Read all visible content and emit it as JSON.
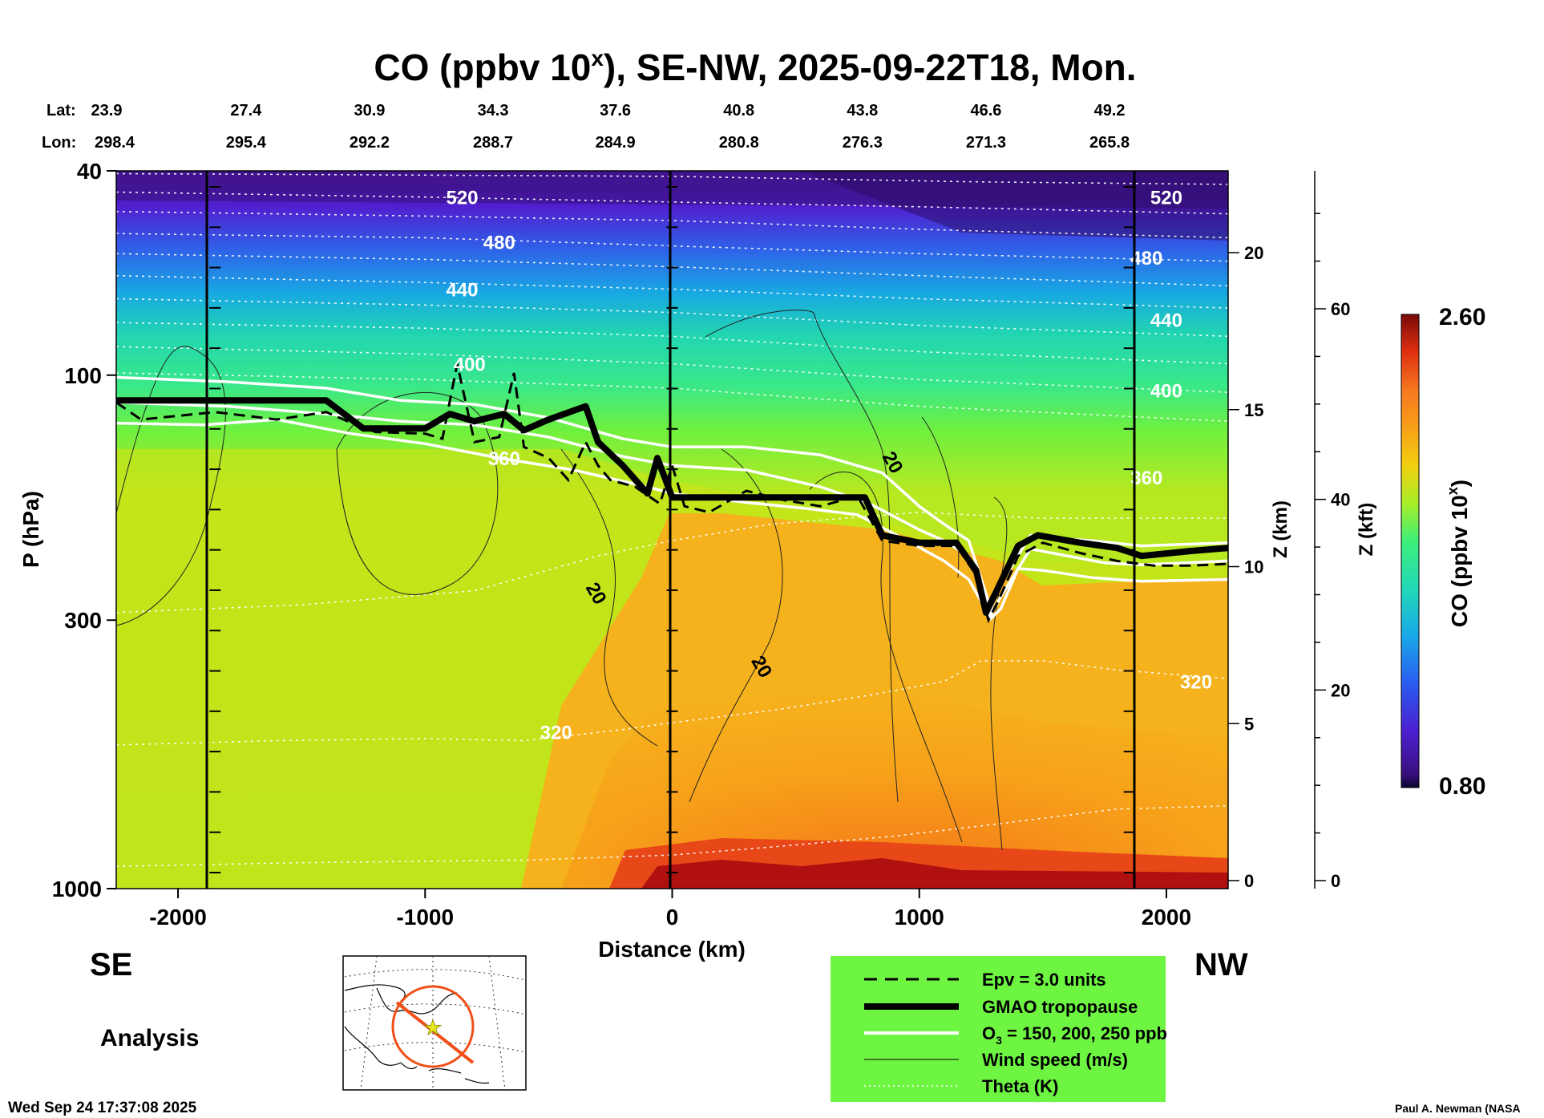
{
  "chart_data": {
    "type": "heatmap",
    "title": "CO (ppbv 10",
    "title_sup": "x",
    "title_rest": "), SE-NW, 2025-09-22T18, Mon.",
    "header": {
      "lat_label": "Lat:",
      "lon_label": "Lon:",
      "lat": [
        "23.9",
        "27.4",
        "30.9",
        "34.3",
        "37.6",
        "40.8",
        "43.8",
        "46.6",
        "49.2"
      ],
      "lon": [
        "298.4",
        "295.4",
        "292.2",
        "288.7",
        "284.9",
        "280.8",
        "276.3",
        "271.3",
        "265.8"
      ]
    },
    "xlabel": "Distance (km)",
    "xlim": [
      -2250,
      2250
    ],
    "xticks": [
      "-2000",
      "-1000",
      "0",
      "1000",
      "2000"
    ],
    "xtick_values": [
      -2000,
      -1000,
      0,
      1000,
      2000
    ],
    "ylabel": "P (hPa)",
    "ylim": [
      1000,
      40
    ],
    "yscale": "log",
    "yticks": [
      "40",
      "100",
      "300",
      "1000"
    ],
    "ytick_values": [
      40,
      100,
      300,
      1000
    ],
    "z_km_label": "Z (km)",
    "z_km_ticks": [
      "0",
      "5",
      "10",
      "15",
      "20"
    ],
    "z_kft_label": "Z (kft)",
    "z_kft_ticks": [
      "0",
      "20",
      "40",
      "60"
    ],
    "colorbar": {
      "label": "CO (ppbv 10",
      "label_sup": "x",
      "label_end": ")",
      "max": "2.60",
      "min": "0.80"
    },
    "theta_labels": [
      {
        "text": "520",
        "x": -850,
        "p": 45
      },
      {
        "text": "480",
        "x": -700,
        "p": 55
      },
      {
        "text": "440",
        "x": -850,
        "p": 68
      },
      {
        "text": "400",
        "x": -820,
        "p": 95
      },
      {
        "text": "360",
        "x": -680,
        "p": 145
      },
      {
        "text": "320",
        "x": -470,
        "p": 495
      },
      {
        "text": "520",
        "x": 2000,
        "p": 45
      },
      {
        "text": "480",
        "x": 1920,
        "p": 59
      },
      {
        "text": "440",
        "x": 2000,
        "p": 78
      },
      {
        "text": "400",
        "x": 2000,
        "p": 107
      },
      {
        "text": "360",
        "x": 1920,
        "p": 158
      },
      {
        "text": "320",
        "x": 2120,
        "p": 395
      }
    ],
    "wind_labels": [
      {
        "text": "20",
        "x": -330,
        "p": 270
      },
      {
        "text": "20",
        "x": 340,
        "p": 375
      },
      {
        "text": "20",
        "x": 870,
        "p": 150
      }
    ],
    "tropopause": [
      [
        -2250,
        112
      ],
      [
        -1850,
        112
      ],
      [
        -1400,
        112
      ],
      [
        -1250,
        127
      ],
      [
        -1000,
        127
      ],
      [
        -900,
        119
      ],
      [
        -800,
        123
      ],
      [
        -680,
        119
      ],
      [
        -600,
        128
      ],
      [
        -500,
        122
      ],
      [
        -350,
        115
      ],
      [
        -300,
        135
      ],
      [
        -200,
        150
      ],
      [
        -100,
        170
      ],
      [
        -60,
        145
      ],
      [
        0,
        173
      ],
      [
        200,
        173
      ],
      [
        500,
        173
      ],
      [
        780,
        173
      ],
      [
        850,
        205
      ],
      [
        1000,
        212
      ],
      [
        1150,
        212
      ],
      [
        1230,
        240
      ],
      [
        1270,
        290
      ],
      [
        1310,
        265
      ],
      [
        1400,
        215
      ],
      [
        1480,
        205
      ],
      [
        1650,
        212
      ],
      [
        1800,
        217
      ],
      [
        1900,
        225
      ],
      [
        2100,
        220
      ],
      [
        2250,
        217
      ]
    ],
    "epv": [
      [
        -2250,
        113
      ],
      [
        -2150,
        122
      ],
      [
        -2000,
        120
      ],
      [
        -1850,
        118
      ],
      [
        -1600,
        122
      ],
      [
        -1400,
        118
      ],
      [
        -1280,
        125
      ],
      [
        -1200,
        129
      ],
      [
        -1000,
        130
      ],
      [
        -930,
        133
      ],
      [
        -870,
        95
      ],
      [
        -800,
        135
      ],
      [
        -700,
        132
      ],
      [
        -640,
        99
      ],
      [
        -600,
        138
      ],
      [
        -500,
        145
      ],
      [
        -420,
        160
      ],
      [
        -350,
        135
      ],
      [
        -300,
        150
      ],
      [
        -250,
        160
      ],
      [
        -150,
        165
      ],
      [
        -50,
        178
      ],
      [
        0,
        150
      ],
      [
        50,
        180
      ],
      [
        150,
        185
      ],
      [
        300,
        168
      ],
      [
        450,
        175
      ],
      [
        600,
        180
      ],
      [
        750,
        172
      ],
      [
        850,
        210
      ],
      [
        1000,
        215
      ],
      [
        1150,
        215
      ],
      [
        1230,
        245
      ],
      [
        1280,
        300
      ],
      [
        1320,
        275
      ],
      [
        1400,
        225
      ],
      [
        1500,
        212
      ],
      [
        1650,
        222
      ],
      [
        1800,
        230
      ],
      [
        1950,
        235
      ],
      [
        2100,
        235
      ],
      [
        2250,
        233
      ]
    ],
    "o3_lines": [
      [
        [
          -2250,
          101
        ],
        [
          -1800,
          103
        ],
        [
          -1400,
          106
        ],
        [
          -1100,
          112
        ],
        [
          -800,
          114
        ],
        [
          -500,
          121
        ],
        [
          -200,
          133
        ],
        [
          0,
          138
        ],
        [
          300,
          138
        ],
        [
          600,
          143
        ],
        [
          850,
          155
        ],
        [
          1000,
          180
        ],
        [
          1100,
          195
        ],
        [
          1200,
          210
        ],
        [
          1290,
          285
        ],
        [
          1330,
          255
        ],
        [
          1450,
          205
        ],
        [
          1550,
          208
        ],
        [
          1700,
          210
        ],
        [
          1900,
          215
        ],
        [
          2250,
          212
        ]
      ],
      [
        [
          -2250,
          113
        ],
        [
          -1800,
          115
        ],
        [
          -1400,
          119
        ],
        [
          -1100,
          123
        ],
        [
          -800,
          125
        ],
        [
          -500,
          132
        ],
        [
          -200,
          144
        ],
        [
          0,
          150
        ],
        [
          300,
          153
        ],
        [
          600,
          165
        ],
        [
          800,
          178
        ],
        [
          1000,
          200
        ],
        [
          1100,
          210
        ],
        [
          1200,
          225
        ],
        [
          1290,
          293
        ],
        [
          1330,
          270
        ],
        [
          1450,
          218
        ],
        [
          1600,
          225
        ],
        [
          1750,
          232
        ],
        [
          1900,
          234
        ],
        [
          2250,
          230
        ]
      ],
      [
        [
          -2250,
          124
        ],
        [
          -1900,
          125
        ],
        [
          -1600,
          122
        ],
        [
          -1300,
          130
        ],
        [
          -1000,
          136
        ],
        [
          -700,
          145
        ],
        [
          -400,
          153
        ],
        [
          -100,
          165
        ],
        [
          0,
          170
        ],
        [
          300,
          177
        ],
        [
          550,
          182
        ],
        [
          750,
          187
        ],
        [
          950,
          210
        ],
        [
          1100,
          230
        ],
        [
          1200,
          250
        ],
        [
          1290,
          298
        ],
        [
          1330,
          285
        ],
        [
          1400,
          238
        ],
        [
          1500,
          240
        ],
        [
          1700,
          248
        ],
        [
          1900,
          252
        ],
        [
          2250,
          250
        ]
      ]
    ],
    "theta_lines": [
      [
        [
          -2250,
          40.5
        ],
        [
          -1800,
          40.6
        ],
        [
          0,
          41
        ],
        [
          1200,
          42
        ],
        [
          2250,
          42.5
        ]
      ],
      [
        [
          -2250,
          44
        ],
        [
          -1000,
          45
        ],
        [
          0,
          46
        ],
        [
          1000,
          47
        ],
        [
          2250,
          48.5
        ]
      ],
      [
        [
          -2250,
          48
        ],
        [
          -1000,
          49
        ],
        [
          0,
          50
        ],
        [
          1000,
          52
        ],
        [
          2250,
          54
        ]
      ],
      [
        [
          -2250,
          53
        ],
        [
          -1000,
          54
        ],
        [
          0,
          56
        ],
        [
          1000,
          58
        ],
        [
          2250,
          60
        ]
      ],
      [
        [
          -2250,
          58
        ],
        [
          -1000,
          59.5
        ],
        [
          0,
          61.5
        ],
        [
          1000,
          64
        ],
        [
          2250,
          67
        ]
      ],
      [
        [
          -2250,
          64
        ],
        [
          -1000,
          66
        ],
        [
          0,
          68
        ],
        [
          1000,
          71
        ],
        [
          2250,
          74
        ]
      ],
      [
        [
          -2250,
          71
        ],
        [
          -1000,
          73
        ],
        [
          0,
          75.5
        ],
        [
          1000,
          80
        ],
        [
          2250,
          84
        ]
      ],
      [
        [
          -2250,
          79
        ],
        [
          -1000,
          81
        ],
        [
          0,
          84
        ],
        [
          1000,
          90
        ],
        [
          2250,
          95
        ]
      ],
      [
        [
          -2250,
          88
        ],
        [
          -1000,
          91
        ],
        [
          0,
          95
        ],
        [
          1000,
          102
        ],
        [
          2250,
          108
        ]
      ],
      [
        [
          -2250,
          99
        ],
        [
          -1000,
          102
        ],
        [
          0,
          106
        ],
        [
          1000,
          115
        ],
        [
          2250,
          123
        ]
      ],
      [
        [
          -2250,
          290
        ],
        [
          -1500,
          280
        ],
        [
          -800,
          263
        ],
        [
          -300,
          225
        ],
        [
          0,
          210
        ],
        [
          400,
          195
        ],
        [
          1000,
          185
        ],
        [
          1500,
          190
        ],
        [
          2250,
          190
        ]
      ],
      [
        [
          -2250,
          525
        ],
        [
          -1600,
          515
        ],
        [
          -1000,
          510
        ],
        [
          -600,
          515
        ],
        [
          -200,
          490
        ],
        [
          0,
          475
        ],
        [
          400,
          450
        ],
        [
          800,
          420
        ],
        [
          1100,
          395
        ],
        [
          1250,
          360
        ],
        [
          1500,
          360
        ],
        [
          1800,
          375
        ],
        [
          2250,
          390
        ]
      ],
      [
        [
          -2250,
          905
        ],
        [
          -1500,
          890
        ],
        [
          -600,
          880
        ],
        [
          0,
          860
        ],
        [
          400,
          830
        ],
        [
          900,
          790
        ],
        [
          1300,
          750
        ],
        [
          1800,
          700
        ],
        [
          2250,
          690
        ]
      ]
    ]
  },
  "map_inset": {
    "icons": [
      "cross-section-circle",
      "location-star"
    ]
  },
  "labels": {
    "left_dir": "SE",
    "right_dir": "NW",
    "mode": "Analysis",
    "timestamp": "Wed Sep 24 17:37:08 2025",
    "credit": "Paul A. Newman (NASA"
  },
  "legend": {
    "bg": "#6ef542",
    "items": [
      {
        "label": "Epv = 3.0 units"
      },
      {
        "label": "GMAO tropopause"
      },
      {
        "label": "O",
        "sub": "3",
        "label_rest": " = 150, 200, 250 ppb"
      },
      {
        "label": "Wind speed (m/s)"
      },
      {
        "label": "Theta (K)"
      }
    ]
  }
}
